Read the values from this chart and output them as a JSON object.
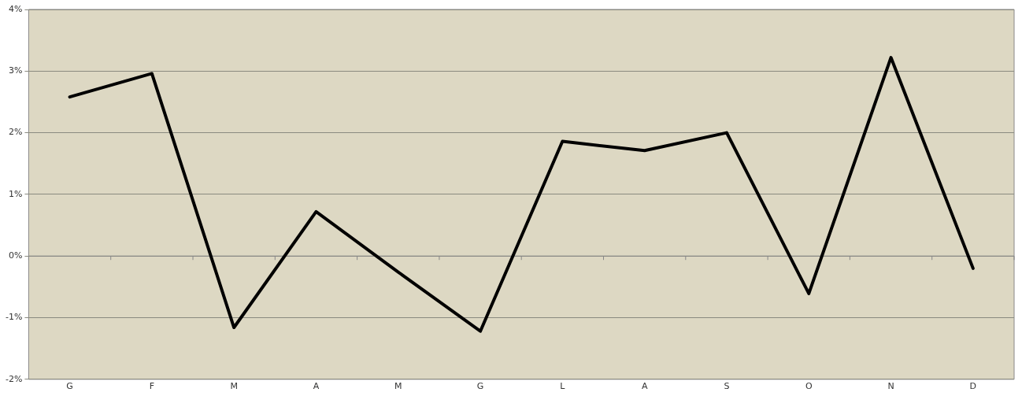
{
  "chart_data": {
    "type": "line",
    "categories": [
      "G",
      "F",
      "M",
      "A",
      "M",
      "G",
      "L",
      "A",
      "S",
      "O",
      "N",
      "D"
    ],
    "series": [
      {
        "color": "#000000",
        "values": [
          2.58,
          2.96,
          -1.16,
          0.72,
          -0.26,
          -1.22,
          1.86,
          1.71,
          2.0,
          -0.61,
          3.22,
          -0.2
        ]
      }
    ],
    "ylim": [
      -2,
      4
    ],
    "yticks": [
      {
        "value": -2,
        "label": "-2%"
      },
      {
        "value": -1,
        "label": "-1%"
      },
      {
        "value": 0,
        "label": "0%"
      },
      {
        "value": 1,
        "label": "1%"
      },
      {
        "value": 2,
        "label": "2%"
      },
      {
        "value": 3,
        "label": "3%"
      },
      {
        "value": 4,
        "label": "4%"
      }
    ],
    "grid": "y",
    "legend": false,
    "marker": "none",
    "line_style": "solid"
  }
}
